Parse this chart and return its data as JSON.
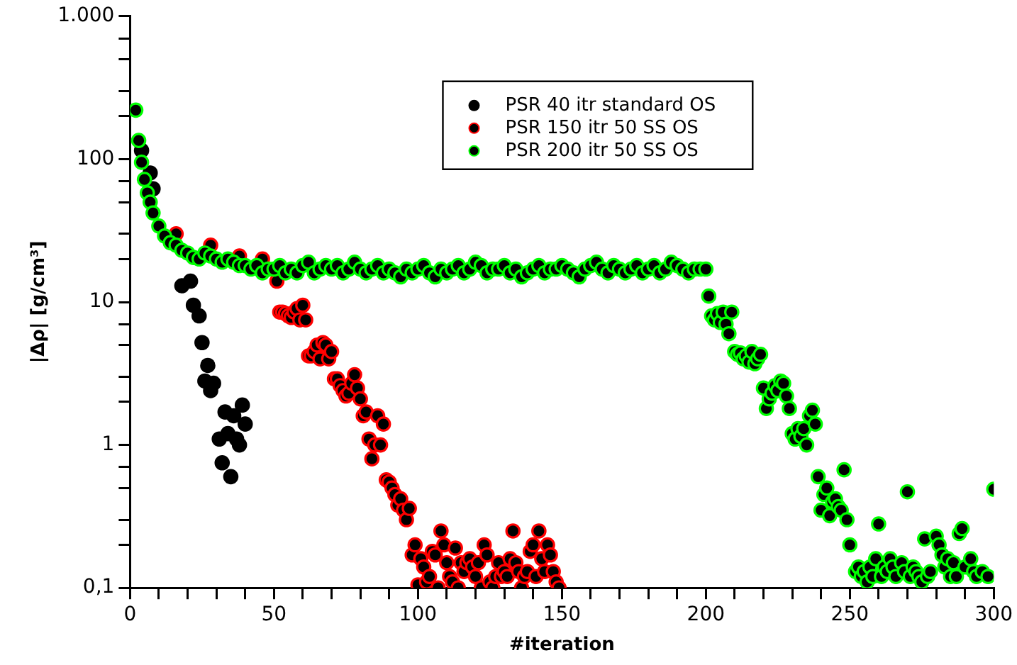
{
  "chart_data": {
    "type": "scatter",
    "xlabel": "#iteration",
    "ylabel": "|Δρ| [g/cm³]",
    "log": "y",
    "marker": "circle",
    "legend": "top right",
    "grid": false,
    "xlim": [
      0,
      300
    ],
    "xticks": [
      0,
      {
        "value": 10,
        "label": null
      },
      {
        "value": 20,
        "label": null
      },
      {
        "value": 30,
        "label": null
      },
      {
        "value": 40,
        "label": null
      },
      50,
      {
        "value": 60,
        "label": null
      },
      {
        "value": 70,
        "label": null
      },
      {
        "value": 80,
        "label": null
      },
      {
        "value": 90,
        "label": null
      },
      100,
      {
        "value": 110,
        "label": null
      },
      {
        "value": 120,
        "label": null
      },
      {
        "value": 130,
        "label": null
      },
      {
        "value": 140,
        "label": null
      },
      150,
      {
        "value": 160,
        "label": null
      },
      {
        "value": 170,
        "label": null
      },
      {
        "value": 180,
        "label": null
      },
      {
        "value": 190,
        "label": null
      },
      200,
      {
        "value": 210,
        "label": null
      },
      {
        "value": 220,
        "label": null
      },
      {
        "value": 230,
        "label": null
      },
      {
        "value": 240,
        "label": null
      },
      250,
      {
        "value": 260,
        "label": null
      },
      {
        "value": 270,
        "label": null
      },
      {
        "value": 280,
        "label": null
      },
      {
        "value": 290,
        "label": null
      },
      300
    ],
    "ylim": [
      0.1,
      1000
    ],
    "yticks": [
      {
        "value": 0.1,
        "label": "0,1"
      },
      {
        "value": 0.2,
        "label": null
      },
      {
        "value": 0.3,
        "label": null
      },
      {
        "value": 0.5,
        "label": null
      },
      {
        "value": 0.7,
        "label": null
      },
      {
        "value": 1,
        "label": "1"
      },
      {
        "value": 2,
        "label": null
      },
      {
        "value": 3,
        "label": null
      },
      {
        "value": 5,
        "label": null
      },
      {
        "value": 7,
        "label": null
      },
      {
        "value": 10,
        "label": "10"
      },
      {
        "value": 20,
        "label": null
      },
      {
        "value": 30,
        "label": null
      },
      {
        "value": 50,
        "label": null
      },
      {
        "value": 70,
        "label": null
      },
      {
        "value": 100,
        "label": "100"
      },
      {
        "value": 200,
        "label": null
      },
      {
        "value": 300,
        "label": null
      },
      {
        "value": 500,
        "label": null
      },
      {
        "value": 700,
        "label": null
      },
      {
        "value": 1000,
        "label": "1.000"
      }
    ],
    "series": [
      {
        "name": "PSR 40 itr standard OS",
        "color": "#000000",
        "x": [
          4,
          7,
          8,
          18,
          21,
          22,
          24,
          25,
          26,
          27,
          28,
          29,
          31,
          32,
          33,
          34,
          35,
          36,
          37,
          38,
          39,
          40
        ],
        "values": [
          115,
          80,
          62,
          13,
          14,
          9.5,
          8,
          5.2,
          2.8,
          3.6,
          2.4,
          2.7,
          1.1,
          0.75,
          1.7,
          1.2,
          0.6,
          1.6,
          1.1,
          1,
          1.9,
          1.4
        ]
      },
      {
        "name": "PSR 150 itr 50 SS OS",
        "color": "#ff0000",
        "x": [
          16,
          28,
          38,
          46,
          51,
          52,
          53,
          54,
          55,
          56,
          57,
          58,
          59,
          60,
          61,
          62,
          63,
          64,
          65,
          66,
          67,
          68,
          69,
          70,
          71,
          72,
          73,
          74,
          75,
          76,
          77,
          78,
          79,
          80,
          81,
          82,
          83,
          84,
          85,
          86,
          87,
          88,
          89,
          90,
          91,
          92,
          93,
          94,
          95,
          96,
          97,
          98,
          99,
          100,
          101,
          102,
          103,
          104,
          105,
          106,
          107,
          108,
          109,
          110,
          111,
          112,
          113,
          114,
          115,
          116,
          117,
          118,
          119,
          120,
          121,
          122,
          123,
          124,
          125,
          126,
          127,
          128,
          129,
          130,
          131,
          132,
          133,
          134,
          135,
          136,
          137,
          138,
          139,
          140,
          141,
          142,
          143,
          144,
          145,
          146,
          147,
          148,
          149
        ],
        "values": [
          30,
          25,
          21,
          20,
          14,
          8.5,
          8.5,
          8.3,
          8,
          7.8,
          8.5,
          9,
          7.5,
          9.5,
          7.5,
          4.2,
          4.2,
          4.5,
          5,
          4,
          5.2,
          5,
          4,
          4.5,
          2.9,
          2.9,
          2.6,
          2.4,
          2.2,
          2.3,
          2.7,
          3.1,
          2.5,
          2.1,
          1.6,
          1.7,
          1.1,
          0.8,
          1,
          1.6,
          1,
          1.4,
          0.57,
          0.55,
          0.5,
          0.45,
          0.38,
          0.42,
          0.35,
          0.3,
          0.36,
          0.17,
          0.2,
          0.105,
          0.16,
          0.14,
          0.11,
          0.12,
          0.18,
          0.17,
          0.1,
          0.25,
          0.2,
          0.15,
          0.12,
          0.11,
          0.19,
          0.1,
          0.15,
          0.13,
          0.15,
          0.16,
          0.14,
          0.12,
          0.15,
          0.1,
          0.2,
          0.17,
          0.11,
          0.1,
          0.12,
          0.15,
          0.12,
          0.13,
          0.12,
          0.16,
          0.25,
          0.15,
          0.13,
          0.1,
          0.12,
          0.13,
          0.18,
          0.2,
          0.12,
          0.25,
          0.16,
          0.13,
          0.2,
          0.17,
          0.13,
          0.11,
          0.1
        ]
      },
      {
        "name": "PSR 200 itr 50 SS OS",
        "color": "#00ff00",
        "x": [
          2,
          3,
          4,
          5,
          6,
          7,
          8,
          10,
          12,
          14,
          16,
          18,
          20,
          22,
          24,
          26,
          28,
          30,
          32,
          34,
          36,
          38,
          40,
          42,
          44,
          46,
          48,
          50,
          52,
          54,
          56,
          58,
          60,
          62,
          64,
          66,
          68,
          70,
          72,
          74,
          76,
          78,
          80,
          82,
          84,
          86,
          88,
          90,
          92,
          94,
          96,
          98,
          100,
          102,
          104,
          106,
          108,
          110,
          112,
          114,
          116,
          118,
          120,
          122,
          124,
          126,
          128,
          130,
          132,
          134,
          136,
          138,
          140,
          142,
          144,
          146,
          148,
          150,
          152,
          154,
          156,
          158,
          160,
          162,
          164,
          166,
          168,
          170,
          172,
          174,
          176,
          178,
          180,
          182,
          184,
          186,
          188,
          190,
          192,
          194,
          196,
          198,
          200,
          201,
          202,
          203,
          204,
          205,
          206,
          207,
          208,
          209,
          210,
          211,
          212,
          213,
          214,
          215,
          216,
          217,
          218,
          219,
          220,
          221,
          222,
          223,
          224,
          225,
          226,
          227,
          228,
          229,
          230,
          231,
          232,
          233,
          234,
          235,
          236,
          237,
          238,
          239,
          240,
          241,
          242,
          243,
          244,
          245,
          246,
          247,
          248,
          249,
          250,
          252,
          253,
          254,
          255,
          256,
          257,
          258,
          259,
          260,
          261,
          262,
          263,
          264,
          265,
          266,
          268,
          269,
          270,
          271,
          272,
          273,
          274,
          275,
          276,
          277,
          278,
          280,
          281,
          282,
          283,
          284,
          285,
          286,
          287,
          288,
          289,
          290,
          292,
          293,
          294,
          296,
          298,
          300
        ],
        "values": [
          220,
          135,
          95,
          72,
          58,
          50,
          42,
          34,
          29,
          26,
          25,
          23,
          22,
          20.5,
          20,
          22,
          21,
          20,
          19,
          20,
          19,
          18,
          18,
          17,
          18,
          16,
          17,
          17,
          18,
          16,
          17,
          16,
          18,
          19,
          16,
          17,
          18,
          17,
          18,
          16,
          17,
          19,
          17,
          16,
          17,
          18,
          16,
          17,
          16,
          15,
          17,
          16,
          17,
          18,
          16,
          15,
          17,
          16,
          17,
          18,
          16,
          17,
          19,
          18,
          16,
          17,
          17,
          18,
          16,
          17,
          15,
          16,
          17,
          18,
          16,
          17,
          17,
          18,
          17,
          16,
          15,
          17,
          18,
          19,
          17,
          16,
          18,
          17,
          16,
          17,
          18,
          16,
          17,
          18,
          16,
          17,
          19,
          18,
          17,
          16,
          17,
          17,
          17,
          11,
          8,
          7.5,
          8.3,
          7.2,
          8.5,
          7,
          6,
          8.5,
          4.5,
          4.3,
          4.4,
          4,
          4.2,
          3.8,
          4.5,
          3.7,
          4,
          4.3,
          2.5,
          1.8,
          2.1,
          2.3,
          2.6,
          2.4,
          2.8,
          2.7,
          2.2,
          1.8,
          1.2,
          1.1,
          1.3,
          1.15,
          1.3,
          1,
          1.6,
          1.75,
          1.4,
          0.6,
          0.35,
          0.45,
          0.5,
          0.32,
          0.4,
          0.42,
          0.37,
          0.35,
          0.67,
          0.3,
          0.2,
          0.13,
          0.14,
          0.12,
          0.13,
          0.11,
          0.14,
          0.12,
          0.16,
          0.28,
          0.12,
          0.14,
          0.13,
          0.16,
          0.14,
          0.12,
          0.15,
          0.13,
          0.47,
          0.12,
          0.14,
          0.13,
          0.12,
          0.11,
          0.22,
          0.12,
          0.13,
          0.23,
          0.2,
          0.17,
          0.14,
          0.16,
          0.12,
          0.15,
          0.12,
          0.24,
          0.26,
          0.14,
          0.16,
          0.13,
          0.12,
          0.13,
          0.12,
          0.49
        ]
      }
    ]
  }
}
